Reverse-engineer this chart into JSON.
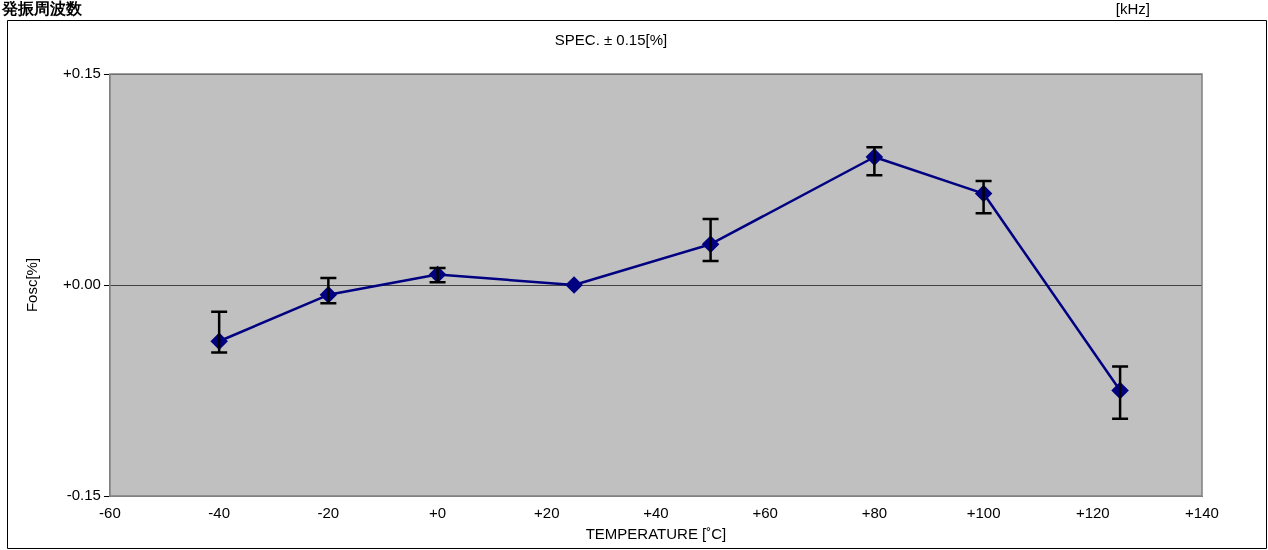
{
  "chart_data": {
    "type": "line",
    "title": "発振周波数",
    "subtitle": "SPEC. ± 0.15[%]",
    "xlabel": "TEMPERATURE [˚C]",
    "ylabel": "Fosc[%]",
    "annotations": [
      "[kHz]"
    ],
    "x": [
      -40,
      -20,
      0,
      25,
      50,
      80,
      100,
      125
    ],
    "series": [
      {
        "color": "#000080",
        "values": [
          -0.04,
          -0.007,
          0.0075,
          0,
          0.029,
          0.091,
          0.065,
          -0.075
        ],
        "errors": [
          [
            -0.048,
            -0.019
          ],
          [
            -0.013,
            0.005
          ],
          [
            0.002,
            0.012
          ],
          null,
          [
            0.017,
            0.047
          ],
          [
            0.078,
            0.098
          ],
          [
            0.051,
            0.074
          ],
          [
            -0.095,
            -0.058
          ]
        ]
      }
    ],
    "xlim": [
      -60,
      140
    ],
    "xticks": [
      {
        "value": -60,
        "label": "-60"
      },
      {
        "value": -40,
        "label": "-40"
      },
      {
        "value": -20,
        "label": "-20"
      },
      {
        "value": 0,
        "label": "+0"
      },
      {
        "value": 20,
        "label": "+20"
      },
      {
        "value": 40,
        "label": "+40"
      },
      {
        "value": 60,
        "label": "+60"
      },
      {
        "value": 80,
        "label": "+80"
      },
      {
        "value": 100,
        "label": "+100"
      },
      {
        "value": 120,
        "label": "+120"
      },
      {
        "value": 140,
        "label": "+140"
      }
    ],
    "ylim": [
      -0.15,
      0.15
    ],
    "yticks": [
      {
        "value": -0.15,
        "label": "-0.15"
      },
      {
        "value": 0,
        "label": "+0.00"
      },
      {
        "value": 0.15,
        "label": "+0.15"
      }
    ],
    "grid": "y",
    "legend": false,
    "marker": "diamond",
    "line_style": "solid"
  }
}
